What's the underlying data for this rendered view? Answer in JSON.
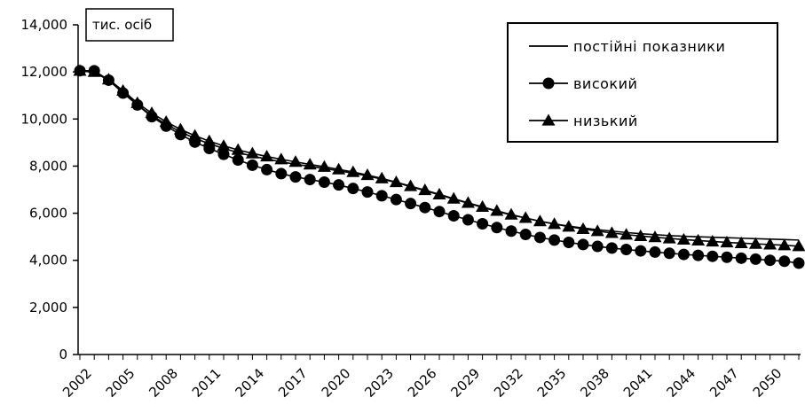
{
  "chart_data": {
    "type": "line",
    "unit_label": "тис. осіб",
    "ylim": [
      0,
      14000
    ],
    "y_ticks": [
      0,
      2000,
      4000,
      6000,
      8000,
      10000,
      12000,
      14000
    ],
    "y_tick_labels": [
      "0",
      "2,000",
      "4,000",
      "6,000",
      "8,000",
      "10,000",
      "12,000",
      "14,000"
    ],
    "x": [
      2002,
      2003,
      2004,
      2005,
      2006,
      2007,
      2008,
      2009,
      2010,
      2011,
      2012,
      2013,
      2014,
      2015,
      2016,
      2017,
      2018,
      2019,
      2020,
      2021,
      2022,
      2023,
      2024,
      2025,
      2026,
      2027,
      2028,
      2029,
      2030,
      2031,
      2032,
      2033,
      2034,
      2035,
      2036,
      2037,
      2038,
      2039,
      2040,
      2041,
      2042,
      2043,
      2044,
      2045,
      2046,
      2047,
      2048,
      2049,
      2050,
      2051,
      2052
    ],
    "x_ticks": [
      2002,
      2005,
      2008,
      2011,
      2014,
      2017,
      2020,
      2023,
      2026,
      2029,
      2032,
      2035,
      2038,
      2041,
      2044,
      2047,
      2050
    ],
    "grid": false,
    "legend_position": "top-right",
    "series": [
      {
        "name": "постійні показники",
        "marker": "none",
        "values": [
          12050,
          11980,
          11650,
          11150,
          10600,
          10150,
          9780,
          9450,
          9180,
          8950,
          8750,
          8580,
          8420,
          8300,
          8180,
          8080,
          7990,
          7900,
          7800,
          7700,
          7580,
          7450,
          7300,
          7130,
          6960,
          6780,
          6600,
          6420,
          6250,
          6080,
          5930,
          5790,
          5660,
          5550,
          5450,
          5370,
          5300,
          5240,
          5180,
          5130,
          5090,
          5050,
          5020,
          5000,
          4980,
          4960,
          4940,
          4920,
          4900,
          4880,
          4860
        ]
      },
      {
        "name": "високий",
        "marker": "circle",
        "values": [
          12050,
          12050,
          11650,
          11100,
          10600,
          10100,
          9700,
          9340,
          9020,
          8750,
          8500,
          8260,
          8040,
          7850,
          7680,
          7540,
          7430,
          7320,
          7200,
          7050,
          6900,
          6740,
          6580,
          6410,
          6240,
          6070,
          5890,
          5720,
          5550,
          5390,
          5240,
          5100,
          4970,
          4860,
          4760,
          4670,
          4590,
          4520,
          4460,
          4400,
          4350,
          4300,
          4250,
          4210,
          4170,
          4130,
          4090,
          4050,
          4000,
          3960,
          3880
        ]
      },
      {
        "name": "низький",
        "marker": "triangle",
        "values": [
          12050,
          12000,
          11680,
          11200,
          10680,
          10250,
          9880,
          9560,
          9290,
          9060,
          8860,
          8690,
          8540,
          8410,
          8290,
          8180,
          8070,
          7970,
          7860,
          7750,
          7620,
          7480,
          7320,
          7150,
          6980,
          6800,
          6620,
          6440,
          6270,
          6100,
          5940,
          5800,
          5660,
          5540,
          5430,
          5330,
          5240,
          5160,
          5090,
          5030,
          4980,
          4930,
          4880,
          4840,
          4800,
          4760,
          4730,
          4700,
          4670,
          4640,
          4600
        ]
      }
    ]
  }
}
